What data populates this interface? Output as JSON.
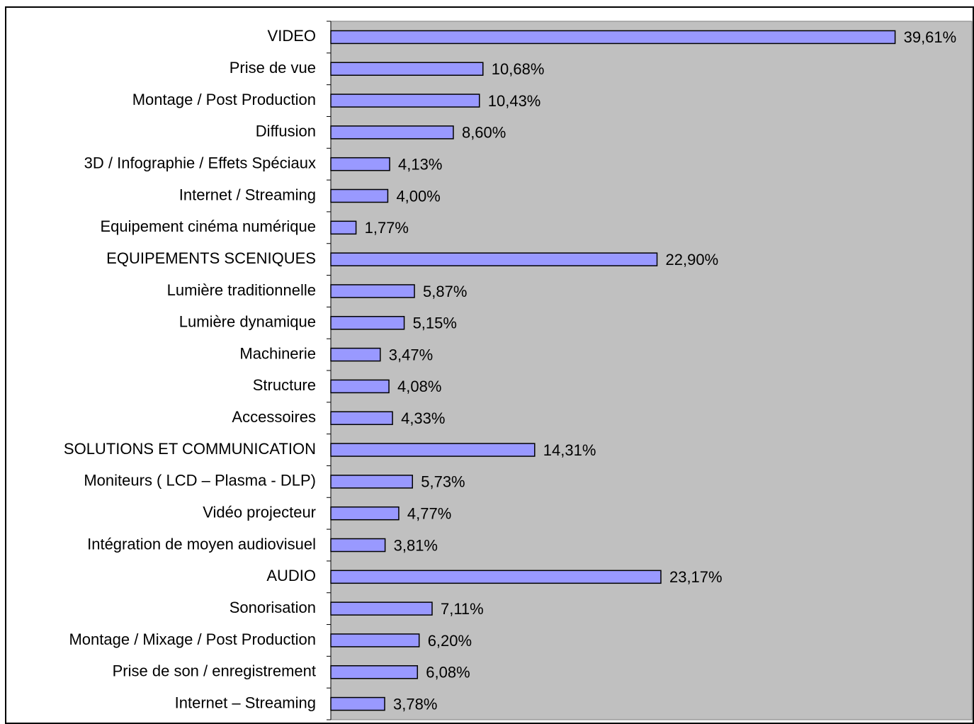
{
  "chart_data": {
    "type": "bar",
    "orientation": "horizontal",
    "categories": [
      "VIDEO",
      "Prise de vue",
      "Montage / Post Production",
      "Diffusion",
      "3D / Infographie / Effets Spéciaux",
      "Internet / Streaming",
      "Equipement cinéma numérique",
      "EQUIPEMENTS SCENIQUES",
      "Lumière traditionnelle",
      "Lumière dynamique",
      "Machinerie",
      "Structure",
      "Accessoires",
      "SOLUTIONS ET COMMUNICATION",
      "Moniteurs ( LCD – Plasma - DLP)",
      "Vidéo projecteur",
      "Intégration de moyen audiovisuel",
      "AUDIO",
      "Sonorisation",
      "Montage / Mixage / Post Production",
      "Prise de son / enregistrement",
      "Internet – Streaming"
    ],
    "values": [
      39.61,
      10.68,
      10.43,
      8.6,
      4.13,
      4.0,
      1.77,
      22.9,
      5.87,
      5.15,
      3.47,
      4.08,
      4.33,
      14.31,
      5.73,
      4.77,
      3.81,
      23.17,
      7.11,
      6.2,
      6.08,
      3.78
    ],
    "value_labels": [
      "39,61%",
      "10,68%",
      "10,43%",
      "8,60%",
      "4,13%",
      "4,00%",
      "1,77%",
      "22,90%",
      "5,87%",
      "5,15%",
      "3,47%",
      "4,08%",
      "4,33%",
      "14,31%",
      "5,73%",
      "4,77%",
      "3,81%",
      "23,17%",
      "7,11%",
      "6,20%",
      "6,08%",
      "3,78%"
    ],
    "color": "#9999ff",
    "plot_background": "#c0c0c0",
    "xlim": [
      0,
      45
    ]
  }
}
